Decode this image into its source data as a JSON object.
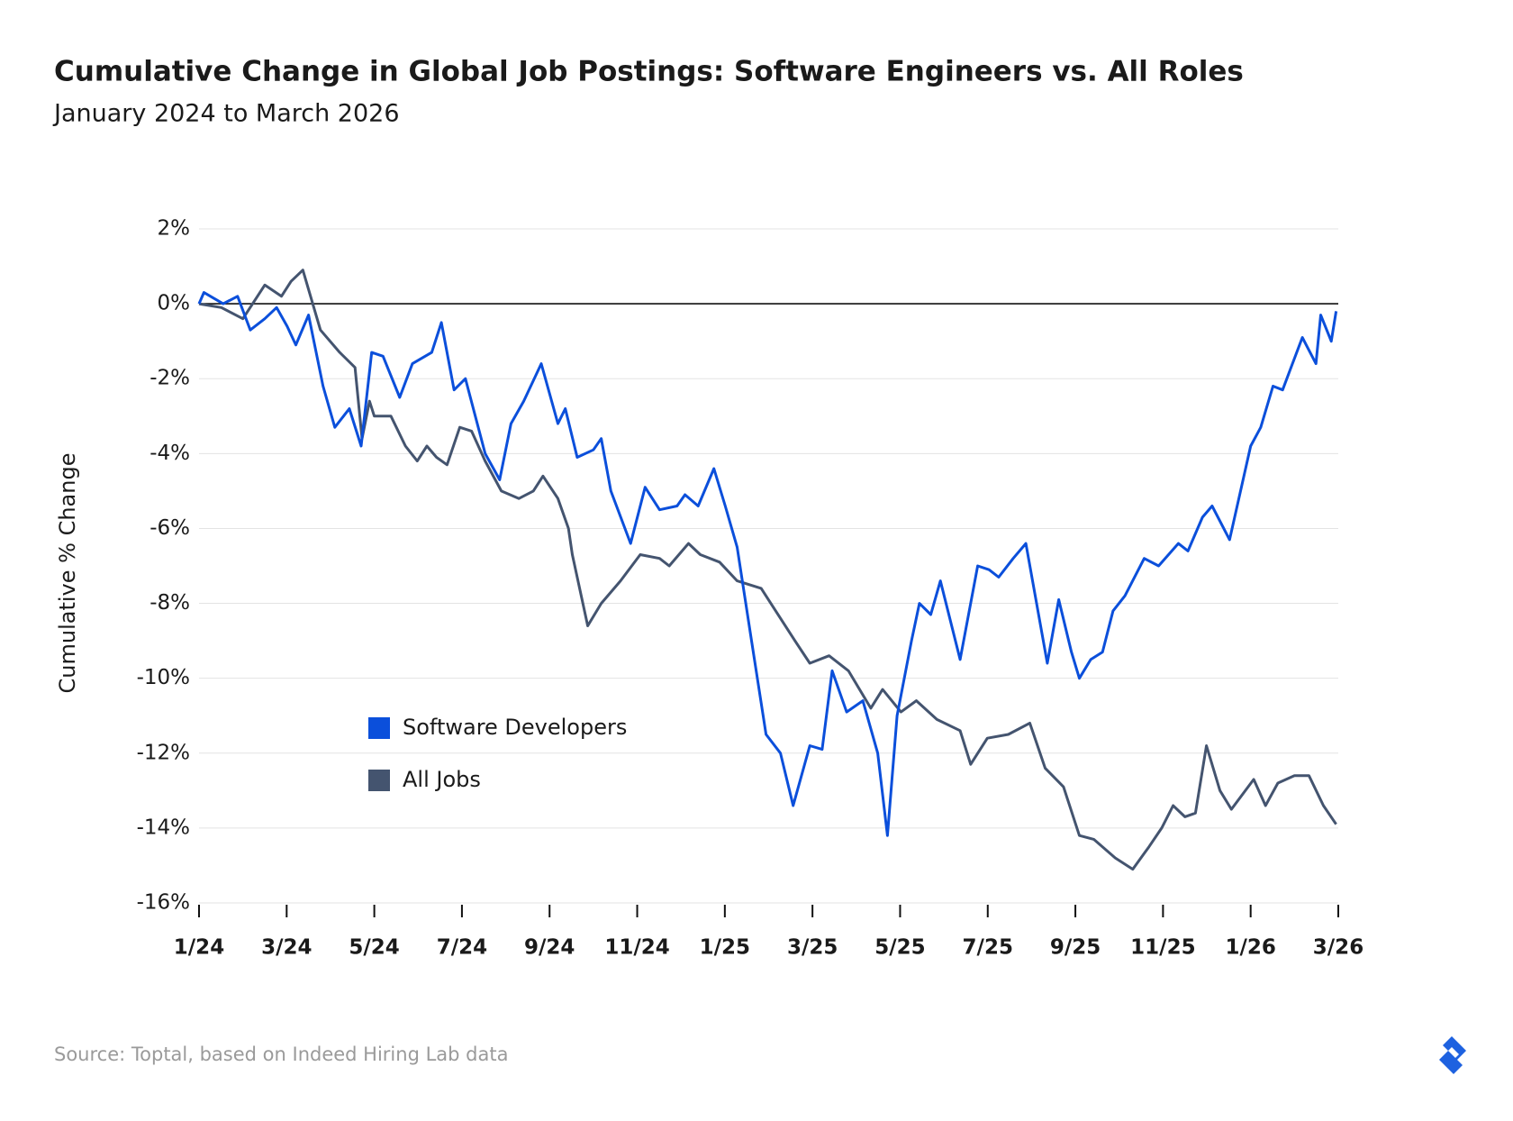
{
  "chart_data": {
    "type": "line",
    "title": "Cumulative Change in Global Job Postings: Software Engineers vs. All Roles",
    "subtitle": "January 2024 to March 2026",
    "y_label": "Cumulative % Change",
    "source": "Source: Toptal, based on Indeed Hiring Lab data",
    "xlim": [
      0,
      26
    ],
    "xticks": [
      {
        "value": 0,
        "label": "1/24"
      },
      {
        "value": 2,
        "label": "3/24"
      },
      {
        "value": 4,
        "label": "5/24"
      },
      {
        "value": 6,
        "label": "7/24"
      },
      {
        "value": 8,
        "label": "9/24"
      },
      {
        "value": 10,
        "label": "11/24"
      },
      {
        "value": 12,
        "label": "1/25"
      },
      {
        "value": 14,
        "label": "3/25"
      },
      {
        "value": 16,
        "label": "5/25"
      },
      {
        "value": 18,
        "label": "7/25"
      },
      {
        "value": 20,
        "label": "9/25"
      },
      {
        "value": 22,
        "label": "11/25"
      },
      {
        "value": 24,
        "label": "1/26"
      },
      {
        "value": 26,
        "label": "3/26"
      }
    ],
    "ylim": [
      -16,
      2
    ],
    "yticks": [
      {
        "value": 2,
        "label": "2%"
      },
      {
        "value": 0,
        "label": "0%"
      },
      {
        "value": -2,
        "label": "-2%"
      },
      {
        "value": -4,
        "label": "-4%"
      },
      {
        "value": -6,
        "label": "-6%"
      },
      {
        "value": -8,
        "label": "-8%"
      },
      {
        "value": -10,
        "label": "-10%"
      },
      {
        "value": -12,
        "label": "-12%"
      },
      {
        "value": -14,
        "label": "-14%"
      },
      {
        "value": -16,
        "label": "-16%"
      }
    ],
    "grid": true,
    "legend": "center left",
    "series": [
      {
        "name": "Software Developers",
        "color": "#0b4fdb",
        "x": [
          0,
          0.11,
          0.55,
          0.88,
          1.17,
          1.5,
          1.77,
          2.01,
          2.21,
          2.5,
          2.83,
          3.1,
          3.43,
          3.7,
          3.94,
          4.2,
          4.58,
          4.87,
          5.31,
          5.53,
          5.82,
          6.08,
          6.53,
          6.86,
          7.12,
          7.41,
          7.81,
          8.19,
          8.36,
          8.63,
          9.0,
          9.18,
          9.4,
          9.85,
          10.18,
          10.51,
          10.91,
          11.09,
          11.39,
          11.75,
          12.01,
          12.28,
          12.61,
          12.94,
          13.27,
          13.56,
          13.94,
          14.22,
          14.45,
          14.78,
          15.15,
          15.49,
          15.71,
          15.93,
          16.26,
          16.44,
          16.7,
          16.92,
          17.37,
          17.77,
          18.03,
          18.25,
          18.58,
          18.87,
          19.36,
          19.62,
          19.91,
          20.09,
          20.35,
          20.62,
          20.86,
          21.13,
          21.57,
          21.9,
          22.35,
          22.57,
          22.9,
          23.12,
          23.52,
          24.0,
          24.23,
          24.51,
          24.73,
          24.89,
          25.18,
          25.49,
          25.6,
          25.84,
          25.95
        ],
        "values": [
          0,
          0.3,
          0.0,
          0.2,
          -0.7,
          -0.4,
          -0.1,
          -0.6,
          -1.1,
          -0.3,
          -2.2,
          -3.3,
          -2.8,
          -3.8,
          -1.3,
          -1.4,
          -2.5,
          -1.6,
          -1.3,
          -0.5,
          -2.3,
          -2.0,
          -4.0,
          -4.7,
          -3.2,
          -2.6,
          -1.6,
          -3.2,
          -2.8,
          -4.1,
          -3.9,
          -3.6,
          -5.0,
          -6.4,
          -4.9,
          -5.5,
          -5.4,
          -5.1,
          -5.4,
          -4.4,
          -5.4,
          -6.5,
          -9.0,
          -11.5,
          -12.0,
          -13.4,
          -11.8,
          -11.9,
          -9.8,
          -10.9,
          -10.6,
          -12.0,
          -14.2,
          -11.0,
          -9.0,
          -8.0,
          -8.3,
          -7.4,
          -9.5,
          -7.0,
          -7.1,
          -7.3,
          -6.8,
          -6.4,
          -9.6,
          -7.9,
          -9.3,
          -10.0,
          -9.5,
          -9.3,
          -8.2,
          -7.8,
          -6.8,
          -7.0,
          -6.4,
          -6.6,
          -5.7,
          -5.4,
          -6.3,
          -3.8,
          -3.3,
          -2.2,
          -2.3,
          -1.8,
          -0.9,
          -1.6,
          -0.3,
          -1.0,
          -0.2
        ]
      },
      {
        "name": "All Jobs",
        "color": "#44546f",
        "x": [
          0,
          0.51,
          1.0,
          1.5,
          1.88,
          2.1,
          2.37,
          2.77,
          3.21,
          3.56,
          3.72,
          3.89,
          4.0,
          4.38,
          4.71,
          4.98,
          5.2,
          5.42,
          5.66,
          5.95,
          6.22,
          6.53,
          6.9,
          7.3,
          7.63,
          7.85,
          8.19,
          8.43,
          8.52,
          8.87,
          9.18,
          9.62,
          10.07,
          10.51,
          10.73,
          11.17,
          11.44,
          11.88,
          12.28,
          12.83,
          13.16,
          13.6,
          13.94,
          14.38,
          14.82,
          15.33,
          15.6,
          16.02,
          16.37,
          16.84,
          17.37,
          17.61,
          17.99,
          18.47,
          18.96,
          19.31,
          19.73,
          20.09,
          20.42,
          20.91,
          21.31,
          21.68,
          21.97,
          22.23,
          22.5,
          22.74,
          22.99,
          23.3,
          23.56,
          24.07,
          24.34,
          24.62,
          25.0,
          25.33,
          25.66,
          25.95
        ],
        "values": [
          0,
          -0.1,
          -0.4,
          0.5,
          0.2,
          0.6,
          0.9,
          -0.7,
          -1.3,
          -1.7,
          -3.6,
          -2.6,
          -3.0,
          -3.0,
          -3.8,
          -4.2,
          -3.8,
          -4.1,
          -4.3,
          -3.3,
          -3.4,
          -4.2,
          -5.0,
          -5.2,
          -5.0,
          -4.6,
          -5.2,
          -6.0,
          -6.7,
          -8.6,
          -8.0,
          -7.4,
          -6.7,
          -6.8,
          -7.0,
          -6.4,
          -6.7,
          -6.9,
          -7.4,
          -7.6,
          -8.2,
          -9.0,
          -9.6,
          -9.4,
          -9.8,
          -10.8,
          -10.3,
          -10.9,
          -10.6,
          -11.1,
          -11.4,
          -12.3,
          -11.6,
          -11.5,
          -11.2,
          -12.4,
          -12.9,
          -14.2,
          -14.3,
          -14.8,
          -15.1,
          -14.5,
          -14.0,
          -13.4,
          -13.7,
          -13.6,
          -11.8,
          -13.0,
          -13.5,
          -12.7,
          -13.4,
          -12.8,
          -12.6,
          -12.6,
          -13.4,
          -13.9
        ]
      }
    ]
  }
}
